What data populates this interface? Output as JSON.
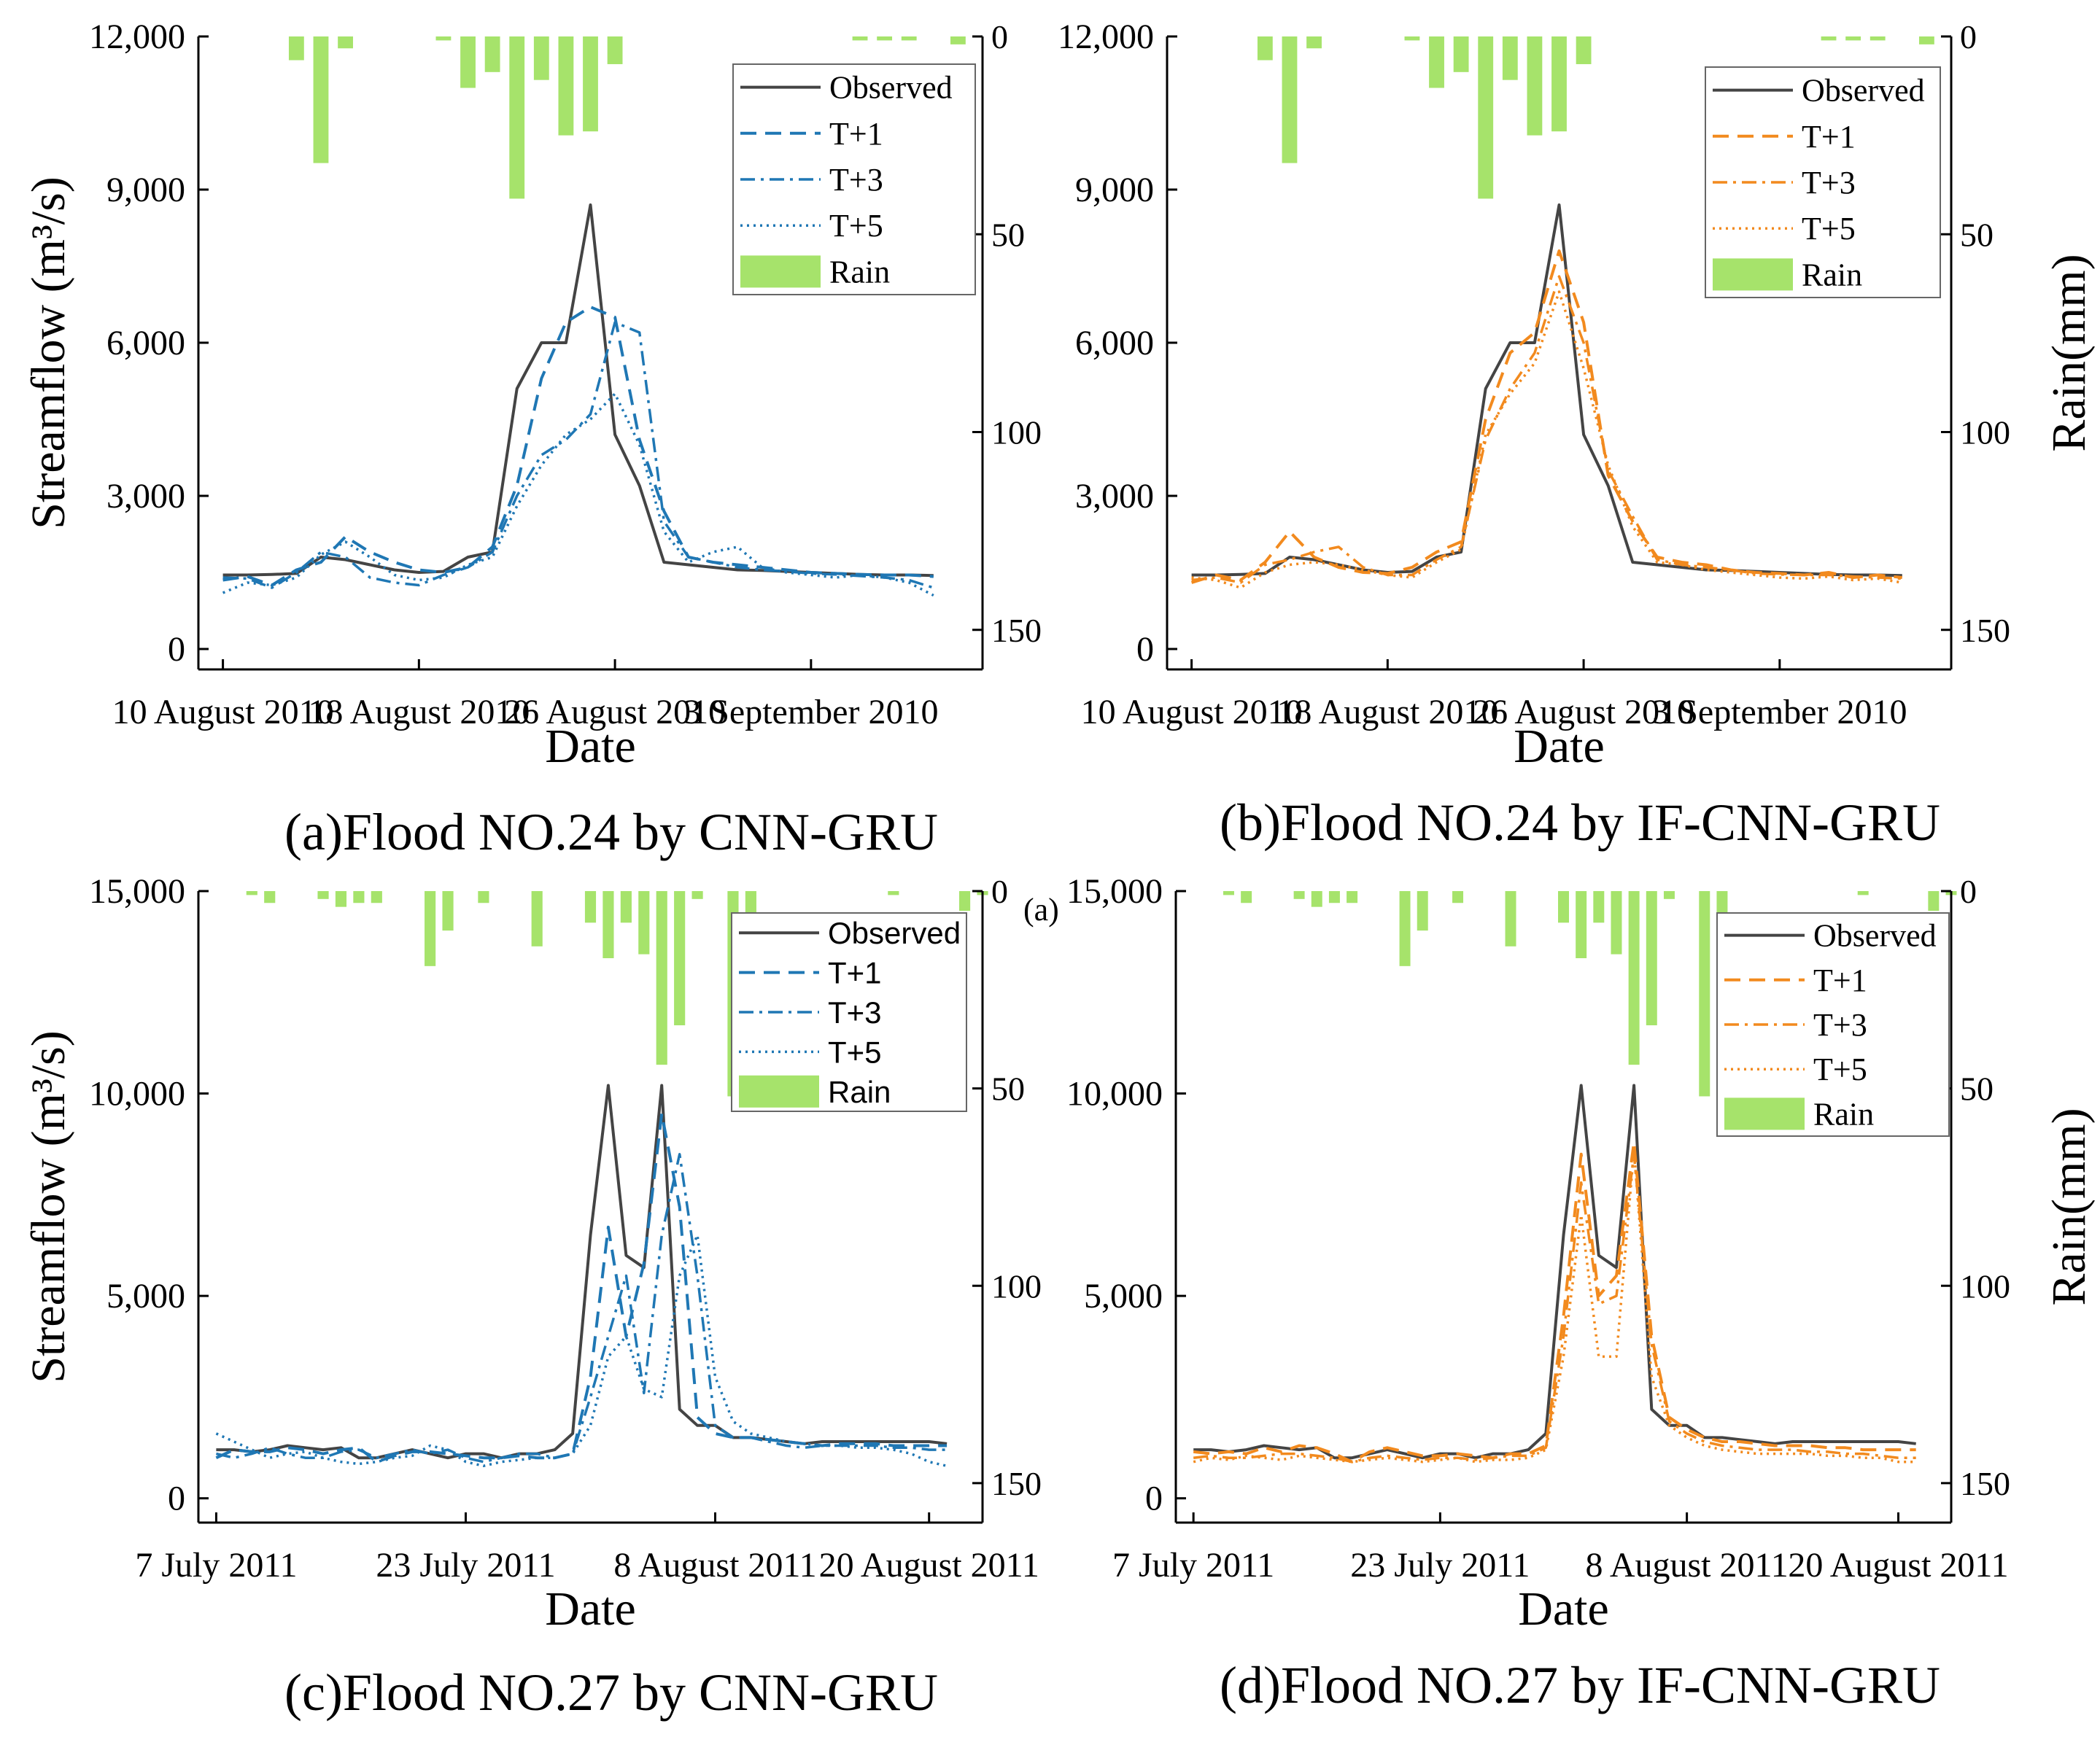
{
  "figure": {
    "stray_label": "(a)"
  },
  "chart_data": [
    {
      "id": "a",
      "type": "line",
      "caption": "(a)Flood NO.24 by CNN-GRU",
      "xlabel": "Date",
      "ylabel": "Streamflow (m³/s)",
      "ylabel_right": "",
      "ylim": [
        -400,
        12000
      ],
      "rain_lim": [
        0,
        160
      ],
      "yticks": [
        0,
        3000,
        6000,
        9000,
        12000
      ],
      "ytick_labels": [
        "0",
        "3,000",
        "6,000",
        "9,000",
        "12,000"
      ],
      "rain_ticks": [
        0,
        50,
        100,
        150
      ],
      "rain_tick_labels": [
        "0",
        "50",
        "100",
        "150"
      ],
      "x_range": [
        -1,
        31
      ],
      "x_ticks": [
        0,
        8,
        16,
        24
      ],
      "x_tick_labels": [
        "10 August 2010",
        "18 August 2010",
        "26 August 2010",
        "3 September 2010"
      ],
      "legend": [
        "Observed",
        "T+1",
        "T+3",
        "T+5",
        "Rain"
      ],
      "legend_font": "serif",
      "color": "#1f77b4",
      "rain_color": "#a6e36b",
      "rain": [
        0,
        0,
        0,
        6,
        32,
        3,
        0,
        0,
        0,
        1,
        13,
        9,
        41,
        11,
        25,
        24,
        7,
        0,
        0,
        0,
        0,
        0,
        0,
        0,
        0,
        0,
        1,
        1,
        1,
        0,
        2
      ],
      "series": [
        {
          "name": "Observed",
          "values": [
            1450,
            1450,
            1460,
            1480,
            1800,
            1750,
            1650,
            1550,
            1500,
            1520,
            1800,
            1900,
            5100,
            6000,
            6000,
            8700,
            4200,
            3200,
            1700,
            1650,
            1600,
            1550,
            1540,
            1520,
            1500,
            1480,
            1460,
            1450,
            1450,
            1440
          ]
        },
        {
          "name": "T+1",
          "values": [
            1350,
            1420,
            1250,
            1550,
            1700,
            2200,
            1900,
            1700,
            1550,
            1500,
            1600,
            2000,
            3200,
            5300,
            6400,
            6700,
            6500,
            4100,
            2700,
            1800,
            1700,
            1650,
            1600,
            1550,
            1500,
            1480,
            1460,
            1450,
            1450,
            1420
          ]
        },
        {
          "name": "T+3",
          "values": [
            1400,
            1380,
            1200,
            1500,
            1900,
            1800,
            1400,
            1300,
            1250,
            1450,
            1600,
            1900,
            3000,
            3800,
            4100,
            4600,
            6400,
            6200,
            2500,
            1800,
            1700,
            1600,
            1550,
            1520,
            1480,
            1460,
            1430,
            1400,
            1350,
            1200
          ]
        },
        {
          "name": "T+5",
          "values": [
            1100,
            1300,
            1250,
            1400,
            1850,
            2100,
            1800,
            1450,
            1350,
            1400,
            1650,
            1800,
            2800,
            3600,
            4200,
            4500,
            5000,
            4000,
            2300,
            1700,
            1900,
            2000,
            1600,
            1500,
            1450,
            1400,
            1450,
            1400,
            1300,
            1050
          ]
        }
      ]
    },
    {
      "id": "b",
      "type": "line",
      "caption": "(b)Flood NO.24 by IF-CNN-GRU",
      "xlabel": "Date",
      "ylabel": "",
      "ylabel_right": "Rain(mm)",
      "ylim": [
        -400,
        12000
      ],
      "rain_lim": [
        0,
        160
      ],
      "yticks": [
        0,
        3000,
        6000,
        9000,
        12000
      ],
      "ytick_labels": [
        "0",
        "3,000",
        "6,000",
        "9,000",
        "12,000"
      ],
      "rain_ticks": [
        0,
        50,
        100,
        150
      ],
      "rain_tick_labels": [
        "0",
        "50",
        "100",
        "150"
      ],
      "x_range": [
        -1,
        31
      ],
      "x_ticks": [
        0,
        8,
        16,
        24
      ],
      "x_tick_labels": [
        "10 August 2010",
        "18 August 2010",
        "26 August 2010",
        "3 September 2010"
      ],
      "legend": [
        "Observed",
        "T+1",
        "T+3",
        "T+5",
        "Rain"
      ],
      "legend_font": "serif",
      "color": "#f28a1e",
      "rain_color": "#a6e36b",
      "rain": [
        0,
        0,
        0,
        6,
        32,
        3,
        0,
        0,
        0,
        1,
        13,
        9,
        41,
        11,
        25,
        24,
        7,
        0,
        0,
        0,
        0,
        0,
        0,
        0,
        0,
        0,
        1,
        1,
        1,
        0,
        2
      ],
      "series": [
        {
          "name": "Observed",
          "values": [
            1450,
            1450,
            1460,
            1480,
            1800,
            1750,
            1650,
            1550,
            1500,
            1520,
            1800,
            1900,
            5100,
            6000,
            6000,
            8700,
            4200,
            3200,
            1700,
            1650,
            1600,
            1550,
            1540,
            1520,
            1500,
            1480,
            1460,
            1450,
            1450,
            1440
          ]
        },
        {
          "name": "T+1",
          "values": [
            1300,
            1450,
            1350,
            1700,
            2300,
            1800,
            1600,
            1500,
            1480,
            1600,
            1900,
            2100,
            4500,
            5800,
            6200,
            7800,
            6400,
            3400,
            2500,
            1800,
            1700,
            1650,
            1550,
            1500,
            1480,
            1450,
            1500,
            1400,
            1450,
            1400
          ]
        },
        {
          "name": "T+3",
          "values": [
            1350,
            1400,
            1300,
            1650,
            1750,
            1900,
            2000,
            1600,
            1450,
            1450,
            1750,
            2000,
            4100,
            5100,
            5800,
            7300,
            6000,
            3500,
            2600,
            1750,
            1650,
            1600,
            1550,
            1480,
            1460,
            1450,
            1450,
            1420,
            1400,
            1380
          ]
        },
        {
          "name": "T+5",
          "values": [
            1400,
            1350,
            1200,
            1500,
            1650,
            1700,
            1650,
            1550,
            1450,
            1400,
            1700,
            1950,
            4200,
            5000,
            5600,
            7000,
            5500,
            3600,
            2400,
            1700,
            1650,
            1550,
            1500,
            1450,
            1400,
            1380,
            1420,
            1350,
            1380,
            1300
          ]
        }
      ]
    },
    {
      "id": "c",
      "type": "line",
      "caption": "(c)Flood NO.27 by CNN-GRU",
      "xlabel": "Date",
      "ylabel": "Streamflow (m³/s)",
      "ylabel_right": "",
      "ylim": [
        -600,
        15000
      ],
      "rain_lim": [
        0,
        160
      ],
      "yticks": [
        0,
        5000,
        10000,
        15000
      ],
      "ytick_labels": [
        "0",
        "5,000",
        "10,000",
        "15,000"
      ],
      "rain_ticks": [
        0,
        50,
        100,
        150
      ],
      "rain_tick_labels": [
        "0",
        "50",
        "100",
        "150"
      ],
      "x_range": [
        -1,
        43
      ],
      "x_ticks": [
        0,
        14,
        28,
        40
      ],
      "x_tick_labels": [
        "7 July 2011",
        "23 July 2011",
        "8 August 2011",
        "20 August 2011"
      ],
      "legend": [
        "Observed",
        "T+1",
        "T+3",
        "T+5",
        "Rain"
      ],
      "legend_font": "sans",
      "color": "#1f77b4",
      "rain_color": "#a6e36b",
      "rain": [
        0,
        0,
        1,
        3,
        0,
        0,
        2,
        4,
        3,
        3,
        0,
        0,
        19,
        10,
        0,
        3,
        0,
        0,
        14,
        0,
        0,
        8,
        17,
        8,
        16,
        44,
        34,
        2,
        0,
        52,
        12,
        0,
        0,
        0,
        0,
        0,
        0,
        0,
        1,
        0,
        0,
        0,
        5,
        1
      ],
      "series": [
        {
          "name": "Observed",
          "values": [
            1200,
            1200,
            1150,
            1200,
            1300,
            1250,
            1200,
            1250,
            1000,
            1000,
            1100,
            1200,
            1100,
            1000,
            1100,
            1100,
            1000,
            1100,
            1100,
            1200,
            1600,
            6500,
            10200,
            6000,
            5700,
            10200,
            2200,
            1800,
            1800,
            1500,
            1500,
            1450,
            1400,
            1350,
            1400,
            1400,
            1400,
            1400,
            1400,
            1400,
            1400,
            1350
          ]
        },
        {
          "name": "T+1",
          "values": [
            1000,
            1200,
            1150,
            1150,
            1250,
            1200,
            1100,
            1200,
            1250,
            900,
            1050,
            1150,
            1150,
            1100,
            1050,
            1000,
            1000,
            1050,
            1000,
            1000,
            1100,
            3000,
            6700,
            4000,
            5800,
            9500,
            7200,
            2000,
            1600,
            1500,
            1500,
            1450,
            1400,
            1350,
            1300,
            1350,
            1350,
            1350,
            1300,
            1300,
            1300,
            1300
          ]
        },
        {
          "name": "T+3",
          "values": [
            1100,
            1000,
            1100,
            1250,
            1100,
            1000,
            1000,
            1150,
            1200,
            1000,
            1100,
            1200,
            1100,
            1200,
            1000,
            900,
            1000,
            1100,
            1100,
            1000,
            1100,
            2500,
            4000,
            5500,
            2600,
            6500,
            8500,
            5500,
            1800,
            1500,
            1500,
            1400,
            1300,
            1250,
            1300,
            1300,
            1300,
            1300,
            1250,
            1250,
            1200,
            1200
          ]
        },
        {
          "name": "T+5",
          "values": [
            1600,
            1400,
            1200,
            1000,
            1100,
            1150,
            1000,
            900,
            850,
            900,
            1000,
            1050,
            1300,
            1200,
            900,
            800,
            900,
            950,
            1000,
            1000,
            1100,
            1800,
            3500,
            4000,
            2700,
            2500,
            5500,
            6500,
            3000,
            1900,
            1600,
            1500,
            1400,
            1350,
            1300,
            1300,
            1250,
            1250,
            1200,
            1100,
            900,
            800
          ]
        }
      ]
    },
    {
      "id": "d",
      "type": "line",
      "caption": "(d)Flood NO.27 by IF-CNN-GRU",
      "xlabel": "Date",
      "ylabel": "",
      "ylabel_right": "Rain(mm)",
      "ylim": [
        -600,
        15000
      ],
      "rain_lim": [
        0,
        160
      ],
      "yticks": [
        0,
        5000,
        10000,
        15000
      ],
      "ytick_labels": [
        "0",
        "5,000",
        "10,000",
        "15,000"
      ],
      "rain_ticks": [
        0,
        50,
        100,
        150
      ],
      "rain_tick_labels": [
        "0",
        "50",
        "100",
        "150"
      ],
      "x_range": [
        -1,
        43
      ],
      "x_ticks": [
        0,
        14,
        28,
        40
      ],
      "x_tick_labels": [
        "7 July 2011",
        "23 July 2011",
        "8 August 2011",
        "20 August 2011"
      ],
      "legend": [
        "Observed",
        "T+1",
        "T+3",
        "T+5",
        "Rain"
      ],
      "legend_font": "serif",
      "color": "#f28a1e",
      "rain_color": "#a6e36b",
      "rain": [
        0,
        0,
        1,
        3,
        0,
        0,
        2,
        4,
        3,
        3,
        0,
        0,
        19,
        10,
        0,
        3,
        0,
        0,
        14,
        0,
        0,
        8,
        17,
        8,
        16,
        44,
        34,
        2,
        0,
        52,
        12,
        0,
        0,
        0,
        0,
        0,
        0,
        0,
        1,
        0,
        0,
        0,
        5,
        1
      ],
      "series": [
        {
          "name": "Observed",
          "values": [
            1200,
            1200,
            1150,
            1200,
            1300,
            1250,
            1200,
            1250,
            1000,
            1000,
            1100,
            1200,
            1100,
            1000,
            1100,
            1100,
            1000,
            1100,
            1100,
            1200,
            1600,
            6500,
            10200,
            6000,
            5700,
            10200,
            2200,
            1800,
            1800,
            1500,
            1500,
            1450,
            1400,
            1350,
            1400,
            1400,
            1400,
            1400,
            1400,
            1400,
            1400,
            1350
          ]
        },
        {
          "name": "T+1",
          "values": [
            1150,
            1100,
            1150,
            1100,
            1250,
            1150,
            1300,
            1250,
            1100,
            900,
            1150,
            1250,
            1150,
            1050,
            1050,
            1100,
            1050,
            1000,
            1100,
            1100,
            1300,
            4500,
            8500,
            5000,
            5500,
            8800,
            4000,
            2000,
            1700,
            1500,
            1400,
            1400,
            1350,
            1300,
            1300,
            1300,
            1250,
            1250,
            1200,
            1200,
            1200,
            1200
          ]
        },
        {
          "name": "T+3",
          "values": [
            1000,
            1050,
            1000,
            1000,
            1050,
            1100,
            1100,
            1050,
            1000,
            900,
            1000,
            1050,
            1000,
            950,
            1000,
            1000,
            950,
            1000,
            1050,
            1050,
            1250,
            4000,
            7800,
            4800,
            5000,
            8500,
            3800,
            1900,
            1600,
            1400,
            1300,
            1250,
            1200,
            1200,
            1200,
            1150,
            1150,
            1100,
            1100,
            1050,
            1000,
            1000
          ]
        },
        {
          "name": "T+5",
          "values": [
            900,
            1000,
            950,
            1050,
            1000,
            950,
            1050,
            1000,
            950,
            900,
            950,
            1000,
            950,
            900,
            950,
            1000,
            900,
            950,
            950,
            1000,
            1200,
            3500,
            7000,
            3500,
            3500,
            8600,
            3000,
            1800,
            1500,
            1300,
            1200,
            1150,
            1100,
            1100,
            1100,
            1100,
            1050,
            1050,
            1000,
            1000,
            900,
            900
          ]
        }
      ]
    }
  ]
}
